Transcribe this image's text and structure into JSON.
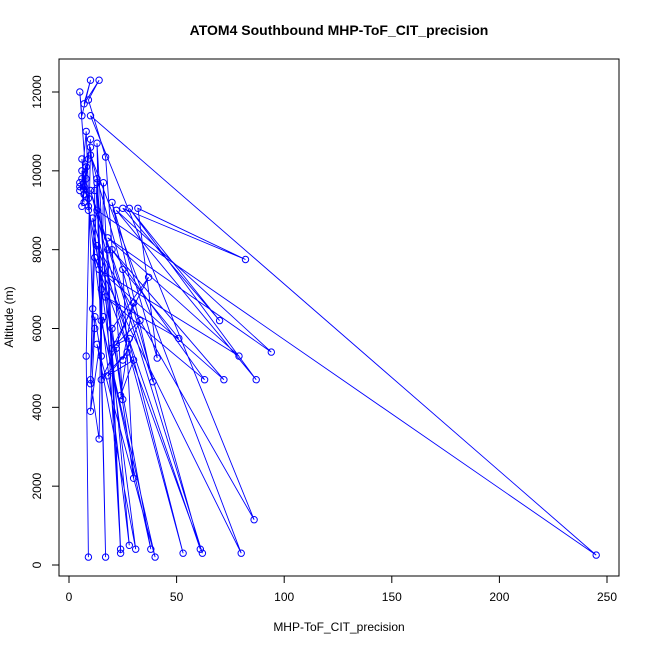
{
  "chart_data": {
    "type": "line",
    "title": "ATOM4 Southbound MHP-ToF_CIT_precision",
    "xlabel": "MHP-ToF_CIT_precision",
    "ylabel": "Altitude (m)",
    "xlim": [
      0,
      250
    ],
    "ylim": [
      0,
      12500
    ],
    "x_ticks": [
      0,
      50,
      100,
      150,
      200,
      250
    ],
    "y_ticks": [
      0,
      2000,
      4000,
      6000,
      8000,
      10000,
      12000
    ],
    "x_tick_labels": [
      "0",
      "50",
      "100",
      "150",
      "200",
      "250"
    ],
    "y_tick_labels": [
      "0",
      "2000",
      "4000",
      "6000",
      "8000",
      "10000",
      "12000"
    ],
    "color": "#0000ff",
    "grid": false,
    "series": [
      {
        "values": [
          [
            9,
            200
          ],
          [
            8,
            5300
          ],
          [
            10,
            10600
          ],
          [
            12,
            9500
          ],
          [
            10,
            4600
          ],
          [
            13,
            9800
          ],
          [
            15,
            7000
          ],
          [
            14,
            3200
          ],
          [
            10,
            4700
          ],
          [
            12,
            6300
          ],
          [
            15,
            5300
          ],
          [
            16,
            9700
          ],
          [
            24,
            300
          ],
          [
            18,
            8000
          ],
          [
            24,
            400
          ],
          [
            13,
            10700
          ],
          [
            17,
            200
          ],
          [
            13,
            9700
          ],
          [
            28,
            500
          ],
          [
            9,
            9100
          ],
          [
            38,
            400
          ],
          [
            15,
            6200
          ],
          [
            40,
            200
          ],
          [
            13,
            5600
          ],
          [
            31,
            400
          ],
          [
            11,
            8800
          ],
          [
            53,
            300
          ],
          [
            10,
            9500
          ],
          [
            62,
            300
          ],
          [
            12,
            7800
          ],
          [
            80,
            300
          ],
          [
            10,
            10400
          ],
          [
            61,
            400
          ],
          [
            13,
            8100
          ],
          [
            86,
            1150
          ],
          [
            10,
            11400
          ],
          [
            245,
            250
          ],
          [
            13,
            9000
          ],
          [
            39,
            4650
          ],
          [
            20,
            9200
          ],
          [
            41,
            5250
          ],
          [
            32,
            9050
          ],
          [
            82,
            7750
          ],
          [
            25,
            9050
          ],
          [
            70,
            6200
          ],
          [
            28,
            9050
          ],
          [
            87,
            4700
          ],
          [
            22,
            9000
          ],
          [
            94,
            5400
          ],
          [
            18,
            8300
          ],
          [
            79,
            5300
          ],
          [
            14,
            7500
          ],
          [
            72,
            4700
          ],
          [
            20,
            8000
          ],
          [
            63,
            4700
          ],
          [
            17,
            6800
          ],
          [
            51,
            5750
          ],
          [
            25,
            7500
          ],
          [
            30,
            2200
          ],
          [
            20,
            6000
          ],
          [
            37,
            7300
          ],
          [
            20,
            5500
          ],
          [
            33,
            6200
          ],
          [
            25,
            5200
          ],
          [
            30,
            6650
          ],
          [
            22,
            5600
          ],
          [
            28,
            5750
          ],
          [
            24,
            4300
          ],
          [
            30,
            5200
          ],
          [
            18,
            4800
          ],
          [
            27,
            5400
          ],
          [
            15,
            4700
          ],
          [
            22,
            5500
          ],
          [
            25,
            4200
          ],
          [
            17,
            10350
          ],
          [
            9,
            11800
          ],
          [
            14,
            12300
          ],
          [
            7,
            11700
          ],
          [
            10,
            12300
          ],
          [
            6,
            11400
          ],
          [
            5,
            12000
          ],
          [
            9,
            9000
          ],
          [
            6,
            10300
          ],
          [
            7,
            9600
          ],
          [
            5,
            9500
          ],
          [
            8,
            9800
          ],
          [
            5,
            9700
          ],
          [
            9,
            9300
          ],
          [
            6,
            10000
          ],
          [
            7,
            9200
          ],
          [
            5,
            9600
          ],
          [
            8,
            10100
          ],
          [
            6,
            9100
          ],
          [
            10,
            10800
          ],
          [
            7,
            9400
          ],
          [
            9,
            10300
          ],
          [
            6,
            9800
          ],
          [
            8,
            11000
          ],
          [
            11,
            6500
          ],
          [
            12,
            6000
          ],
          [
            10,
            3900
          ],
          [
            16,
            6300
          ]
        ]
      }
    ]
  }
}
